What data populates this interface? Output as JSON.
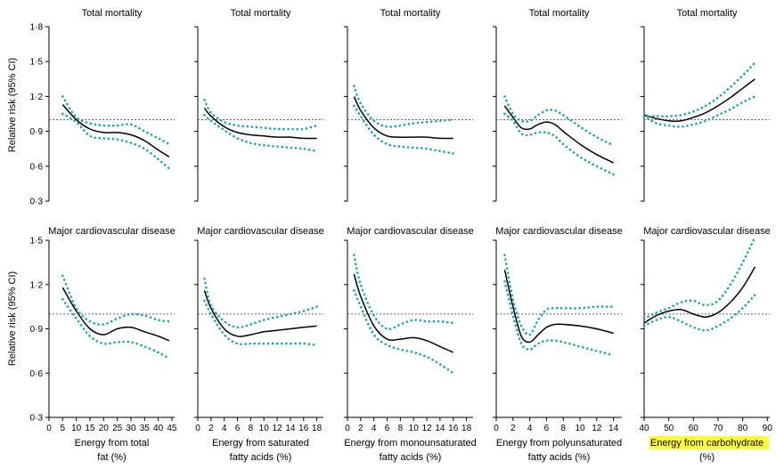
{
  "figure": {
    "ylabel": "Relative risk (95% CI)",
    "colors": {
      "line": "#000000",
      "ci": "#1aa3ad",
      "reference": "#666666",
      "highlight": "#ffff33"
    }
  },
  "chart_data": [
    {
      "type": "line",
      "row": 0,
      "col": 0,
      "title": "Total mortality",
      "xlabel": [
        "",
        ""
      ],
      "ylim": [
        0.3,
        1.8
      ],
      "yticks": [
        "0·3",
        "0·6",
        "0·9",
        "1·2",
        "1·5",
        "1·8"
      ],
      "xlim": [
        0,
        46
      ],
      "xticks": [],
      "reference": 1.0,
      "series": [
        {
          "role": "estimate",
          "x": [
            5,
            10,
            15,
            20,
            25,
            30,
            35,
            40,
            44
          ],
          "y": [
            1.13,
            1.0,
            0.92,
            0.89,
            0.89,
            0.87,
            0.82,
            0.74,
            0.68
          ]
        },
        {
          "role": "ci_upper",
          "x": [
            5,
            10,
            15,
            20,
            25,
            30,
            35,
            40,
            44
          ],
          "y": [
            1.2,
            1.02,
            0.97,
            0.95,
            0.95,
            0.96,
            0.9,
            0.84,
            0.79
          ]
        },
        {
          "role": "ci_lower",
          "x": [
            5,
            10,
            15,
            20,
            25,
            30,
            35,
            40,
            44
          ],
          "y": [
            1.05,
            0.98,
            0.86,
            0.84,
            0.83,
            0.8,
            0.75,
            0.66,
            0.58
          ]
        }
      ]
    },
    {
      "type": "line",
      "row": 0,
      "col": 1,
      "title": "Total mortality",
      "xlabel": [
        "",
        ""
      ],
      "ylim": [
        0.3,
        1.8
      ],
      "yticks": [],
      "xlim": [
        0,
        19
      ],
      "xticks": [],
      "reference": 1.0,
      "series": [
        {
          "role": "estimate",
          "x": [
            1,
            2,
            4,
            6,
            8,
            10,
            12,
            14,
            16,
            18
          ],
          "y": [
            1.1,
            1.03,
            0.94,
            0.89,
            0.87,
            0.86,
            0.85,
            0.85,
            0.84,
            0.84
          ]
        },
        {
          "role": "ci_upper",
          "x": [
            1,
            2,
            4,
            6,
            8,
            10,
            12,
            14,
            16,
            18
          ],
          "y": [
            1.17,
            1.06,
            0.98,
            0.95,
            0.94,
            0.93,
            0.92,
            0.92,
            0.92,
            0.95
          ]
        },
        {
          "role": "ci_lower",
          "x": [
            1,
            2,
            4,
            6,
            8,
            10,
            12,
            14,
            16,
            18
          ],
          "y": [
            1.04,
            0.99,
            0.91,
            0.84,
            0.8,
            0.78,
            0.77,
            0.76,
            0.75,
            0.73
          ]
        }
      ]
    },
    {
      "type": "line",
      "row": 0,
      "col": 2,
      "title": "Total mortality",
      "xlabel": [
        "",
        ""
      ],
      "ylim": [
        0.3,
        1.8
      ],
      "yticks": [],
      "xlim": [
        0,
        19
      ],
      "xticks": [],
      "reference": 1.0,
      "series": [
        {
          "role": "estimate",
          "x": [
            1,
            2,
            4,
            6,
            8,
            10,
            12,
            14,
            16
          ],
          "y": [
            1.2,
            1.08,
            0.93,
            0.86,
            0.85,
            0.85,
            0.85,
            0.84,
            0.84
          ]
        },
        {
          "role": "ci_upper",
          "x": [
            1,
            2,
            4,
            6,
            8,
            10,
            12,
            14,
            16
          ],
          "y": [
            1.29,
            1.14,
            0.99,
            0.94,
            0.95,
            0.97,
            0.98,
            0.99,
            1.0
          ]
        },
        {
          "role": "ci_lower",
          "x": [
            1,
            2,
            4,
            6,
            8,
            10,
            12,
            14,
            16
          ],
          "y": [
            1.12,
            1.03,
            0.87,
            0.79,
            0.77,
            0.76,
            0.75,
            0.73,
            0.71
          ]
        }
      ]
    },
    {
      "type": "line",
      "row": 0,
      "col": 3,
      "title": "Total mortality",
      "xlabel": [
        "",
        ""
      ],
      "ylim": [
        0.3,
        1.8
      ],
      "yticks": [],
      "xlim": [
        0,
        15
      ],
      "xticks": [],
      "reference": 1.0,
      "series": [
        {
          "role": "estimate",
          "x": [
            1,
            2,
            3,
            4,
            5,
            6,
            7,
            8,
            10,
            12,
            14
          ],
          "y": [
            1.12,
            1.02,
            0.93,
            0.92,
            0.96,
            0.98,
            0.96,
            0.9,
            0.79,
            0.7,
            0.63
          ]
        },
        {
          "role": "ci_upper",
          "x": [
            1,
            2,
            3,
            4,
            5,
            6,
            7,
            8,
            10,
            12,
            14
          ],
          "y": [
            1.2,
            1.05,
            0.99,
            0.99,
            1.04,
            1.08,
            1.08,
            1.04,
            0.94,
            0.85,
            0.78
          ]
        },
        {
          "role": "ci_lower",
          "x": [
            1,
            2,
            3,
            4,
            5,
            6,
            7,
            8,
            10,
            12,
            14
          ],
          "y": [
            1.05,
            0.99,
            0.88,
            0.87,
            0.89,
            0.89,
            0.86,
            0.79,
            0.68,
            0.6,
            0.53
          ]
        }
      ]
    },
    {
      "type": "line",
      "row": 0,
      "col": 4,
      "title": "Total mortality",
      "xlabel": [
        "",
        ""
      ],
      "ylim": [
        0.3,
        1.8
      ],
      "yticks": [],
      "xlim": [
        40,
        91
      ],
      "xticks": [],
      "reference": 1.0,
      "series": [
        {
          "role": "estimate",
          "x": [
            40,
            45,
            50,
            55,
            60,
            65,
            70,
            75,
            80,
            85
          ],
          "y": [
            1.04,
            1.01,
            0.99,
            0.99,
            1.02,
            1.06,
            1.12,
            1.19,
            1.27,
            1.35
          ]
        },
        {
          "role": "ci_upper",
          "x": [
            40,
            45,
            50,
            55,
            60,
            65,
            70,
            75,
            80,
            85
          ],
          "y": [
            1.03,
            1.03,
            1.03,
            1.04,
            1.07,
            1.12,
            1.19,
            1.28,
            1.38,
            1.49
          ]
        },
        {
          "role": "ci_lower",
          "x": [
            40,
            45,
            50,
            55,
            60,
            65,
            70,
            75,
            80,
            85
          ],
          "y": [
            1.03,
            0.97,
            0.95,
            0.94,
            0.96,
            0.99,
            1.04,
            1.09,
            1.15,
            1.2
          ]
        }
      ]
    },
    {
      "type": "line",
      "row": 1,
      "col": 0,
      "title": "Major cardiovascular disease",
      "xlabel": [
        "Energy from total",
        "fat (%)"
      ],
      "ylim": [
        0.3,
        1.5
      ],
      "yticks": [
        "0·3",
        "0·6",
        "0·9",
        "1·2",
        "1·5"
      ],
      "xlim": [
        0,
        46
      ],
      "xticks": [
        "0",
        "5",
        "10",
        "15",
        "20",
        "25",
        "30",
        "35",
        "40",
        "45"
      ],
      "reference": 1.0,
      "series": [
        {
          "role": "estimate",
          "x": [
            5,
            10,
            15,
            20,
            25,
            30,
            35,
            40,
            44
          ],
          "y": [
            1.18,
            1.02,
            0.9,
            0.86,
            0.9,
            0.91,
            0.88,
            0.85,
            0.82
          ]
        },
        {
          "role": "ci_upper",
          "x": [
            5,
            10,
            15,
            20,
            25,
            30,
            35,
            40,
            44
          ],
          "y": [
            1.26,
            1.04,
            0.95,
            0.93,
            0.97,
            1.0,
            0.99,
            0.96,
            0.95
          ]
        },
        {
          "role": "ci_lower",
          "x": [
            5,
            10,
            15,
            20,
            25,
            30,
            35,
            40,
            44
          ],
          "y": [
            1.1,
            0.97,
            0.85,
            0.8,
            0.81,
            0.81,
            0.78,
            0.74,
            0.7
          ]
        }
      ]
    },
    {
      "type": "line",
      "row": 1,
      "col": 1,
      "title": "Major cardiovascular disease",
      "xlabel": [
        "Energy from saturated",
        "fatty acids (%)"
      ],
      "ylim": [
        0.3,
        1.5
      ],
      "yticks": [],
      "xlim": [
        0,
        19
      ],
      "xticks": [
        "0",
        "2",
        "4",
        "6",
        "8",
        "10",
        "12",
        "14",
        "16",
        "18"
      ],
      "reference": 1.0,
      "series": [
        {
          "role": "estimate",
          "x": [
            1,
            2,
            4,
            6,
            8,
            10,
            12,
            14,
            16,
            18
          ],
          "y": [
            1.16,
            1.04,
            0.9,
            0.85,
            0.86,
            0.88,
            0.89,
            0.9,
            0.91,
            0.92
          ]
        },
        {
          "role": "ci_upper",
          "x": [
            1,
            2,
            4,
            6,
            8,
            10,
            12,
            14,
            16,
            18
          ],
          "y": [
            1.24,
            1.06,
            0.95,
            0.91,
            0.93,
            0.96,
            0.98,
            1.0,
            1.02,
            1.05
          ]
        },
        {
          "role": "ci_lower",
          "x": [
            1,
            2,
            4,
            6,
            8,
            10,
            12,
            14,
            16,
            18
          ],
          "y": [
            1.09,
            1.0,
            0.86,
            0.8,
            0.8,
            0.8,
            0.8,
            0.8,
            0.8,
            0.79
          ]
        }
      ]
    },
    {
      "type": "line",
      "row": 1,
      "col": 2,
      "title": "Major cardiovascular disease",
      "xlabel": [
        "Energy from monounsaturated",
        "fatty acids (%)"
      ],
      "ylim": [
        0.3,
        1.5
      ],
      "yticks": [],
      "xlim": [
        0,
        19
      ],
      "xticks": [
        "0",
        "2",
        "4",
        "6",
        "8",
        "10",
        "12",
        "14",
        "16",
        "18"
      ],
      "reference": 1.0,
      "series": [
        {
          "role": "estimate",
          "x": [
            1,
            2,
            4,
            6,
            8,
            10,
            12,
            14,
            16
          ],
          "y": [
            1.27,
            1.12,
            0.92,
            0.83,
            0.83,
            0.84,
            0.82,
            0.78,
            0.74
          ]
        },
        {
          "role": "ci_upper",
          "x": [
            1,
            2,
            4,
            6,
            8,
            10,
            12,
            14,
            16
          ],
          "y": [
            1.4,
            1.2,
            0.99,
            0.9,
            0.93,
            0.96,
            0.95,
            0.95,
            0.94
          ]
        },
        {
          "role": "ci_lower",
          "x": [
            1,
            2,
            4,
            6,
            8,
            10,
            12,
            14,
            16
          ],
          "y": [
            1.16,
            1.05,
            0.86,
            0.79,
            0.76,
            0.74,
            0.71,
            0.66,
            0.6
          ]
        }
      ]
    },
    {
      "type": "line",
      "row": 1,
      "col": 3,
      "title": "Major cardiovascular disease",
      "xlabel": [
        "Energy from polyunsaturated",
        "fatty acids (%)"
      ],
      "ylim": [
        0.3,
        1.5
      ],
      "yticks": [],
      "xlim": [
        0,
        15
      ],
      "xticks": [
        "0",
        "2",
        "4",
        "6",
        "8",
        "10",
        "12",
        "14"
      ],
      "reference": 1.0,
      "series": [
        {
          "role": "estimate",
          "x": [
            1,
            2,
            3,
            4,
            5,
            6,
            7,
            8,
            10,
            12,
            14
          ],
          "y": [
            1.3,
            1.05,
            0.85,
            0.81,
            0.86,
            0.91,
            0.93,
            0.93,
            0.92,
            0.9,
            0.87
          ]
        },
        {
          "role": "ci_upper",
          "x": [
            1,
            2,
            3,
            4,
            5,
            6,
            7,
            8,
            10,
            12,
            14
          ],
          "y": [
            1.4,
            1.1,
            0.92,
            0.86,
            0.96,
            1.03,
            1.04,
            1.04,
            1.04,
            1.05,
            1.05
          ]
        },
        {
          "role": "ci_lower",
          "x": [
            1,
            2,
            3,
            4,
            5,
            6,
            7,
            8,
            10,
            12,
            14
          ],
          "y": [
            1.22,
            0.99,
            0.8,
            0.76,
            0.8,
            0.82,
            0.82,
            0.81,
            0.78,
            0.75,
            0.72
          ]
        }
      ]
    },
    {
      "type": "line",
      "row": 1,
      "col": 4,
      "title": "Major cardiovascular disease",
      "xlabel": [
        "Energy from carbohydrate",
        "(%)"
      ],
      "xlabel_highlight": true,
      "ylim": [
        0.3,
        1.5
      ],
      "yticks": [],
      "xlim": [
        40,
        91
      ],
      "xticks": [
        "40",
        "50",
        "60",
        "70",
        "80",
        "90"
      ],
      "reference": 1.0,
      "series": [
        {
          "role": "estimate",
          "x": [
            40,
            45,
            50,
            55,
            60,
            65,
            70,
            75,
            80,
            85
          ],
          "y": [
            0.94,
            0.99,
            1.02,
            1.03,
            1.0,
            0.98,
            1.01,
            1.08,
            1.18,
            1.32
          ]
        },
        {
          "role": "ci_upper",
          "x": [
            40,
            45,
            50,
            55,
            60,
            65,
            70,
            75,
            80,
            85
          ],
          "y": [
            0.97,
            1.01,
            1.04,
            1.08,
            1.09,
            1.06,
            1.09,
            1.2,
            1.35,
            1.52
          ]
        },
        {
          "role": "ci_lower",
          "x": [
            40,
            45,
            50,
            55,
            60,
            65,
            70,
            75,
            80,
            85
          ],
          "y": [
            0.92,
            0.96,
            0.98,
            0.95,
            0.91,
            0.89,
            0.92,
            0.97,
            1.04,
            1.13
          ]
        }
      ]
    }
  ]
}
